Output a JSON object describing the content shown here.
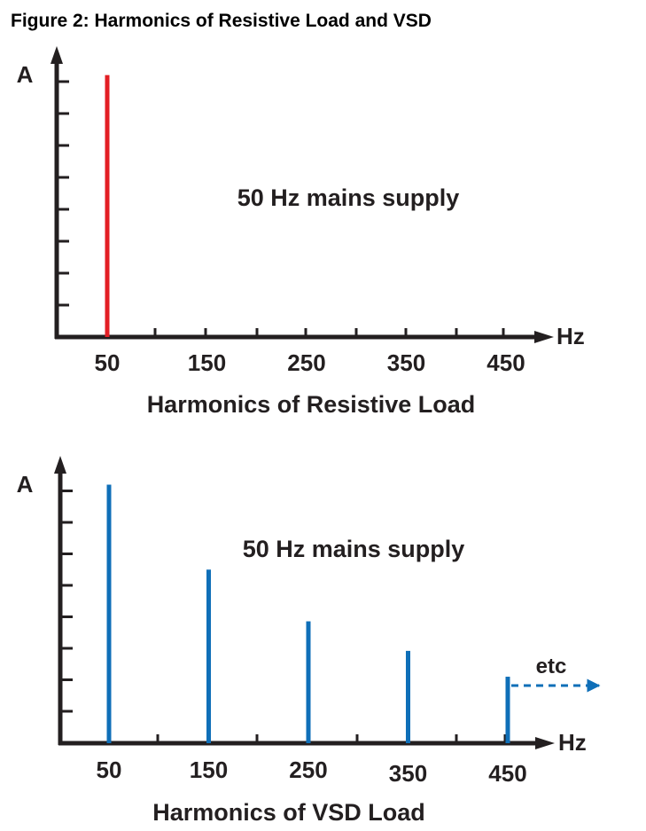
{
  "figure_title": "Figure 2: Harmonics of Resistive Load and VSD",
  "colors": {
    "resistive": "#e31e24",
    "vsd": "#0f6fb8",
    "axis": "#231f20"
  },
  "chart_data": [
    {
      "type": "bar",
      "title": "Harmonics of Resistive Load",
      "ylabel": "A",
      "xlabel": "Hz",
      "annotation": "50 Hz mains supply",
      "tick_labels": [
        "50",
        "150",
        "250",
        "350",
        "450"
      ],
      "categories": [
        50,
        150,
        250,
        350,
        450
      ],
      "values": [
        7,
        0,
        0,
        0,
        0
      ],
      "ylim": [
        0,
        7.3
      ],
      "grid": false
    },
    {
      "type": "bar",
      "title": "Harmonics of VSD Load",
      "ylabel": "A",
      "xlabel": "Hz",
      "annotation": "50 Hz mains supply",
      "trailing_note": "etc",
      "tick_labels": [
        "50",
        "150",
        "250",
        "350",
        "450"
      ],
      "categories": [
        50,
        150,
        250,
        350,
        450
      ],
      "values": [
        7,
        4.7,
        3.3,
        2.5,
        1.8
      ],
      "ylim": [
        0,
        7.3
      ],
      "grid": false
    }
  ]
}
